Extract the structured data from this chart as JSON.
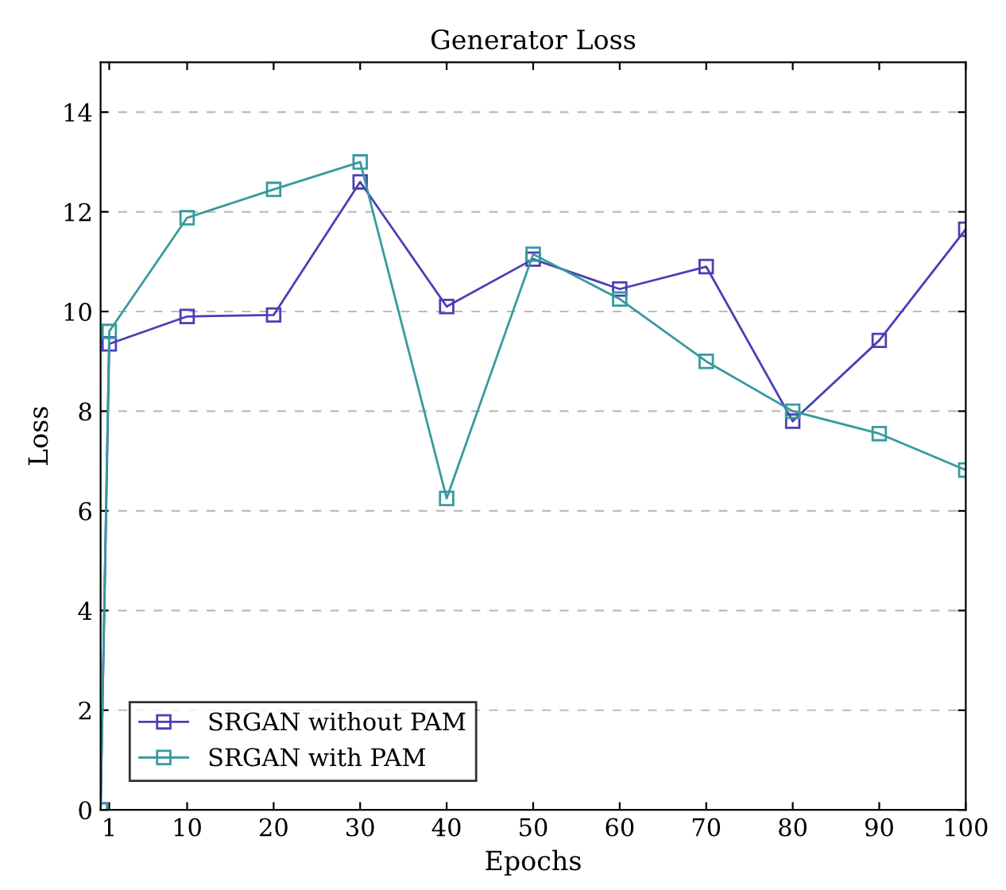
{
  "chart_data": {
    "type": "line",
    "title": "Generator Loss",
    "xlabel": "Epochs",
    "ylabel": "Loss",
    "x": [
      0,
      1,
      10,
      20,
      30,
      40,
      50,
      60,
      70,
      80,
      90,
      100
    ],
    "series": [
      {
        "name": "SRGAN without PAM",
        "color": "#4a3fb5",
        "values": [
          0,
          9.35,
          9.9,
          9.93,
          12.6,
          10.1,
          11.05,
          10.45,
          10.9,
          7.8,
          9.42,
          11.65
        ]
      },
      {
        "name": "SRGAN with PAM",
        "color": "#379a9e",
        "values": [
          0,
          9.6,
          11.88,
          12.45,
          13.0,
          6.25,
          11.15,
          10.25,
          9.0,
          8.0,
          7.55,
          6.82
        ]
      }
    ],
    "xlim": [
      0,
      100
    ],
    "xticks": [
      1,
      10,
      20,
      30,
      40,
      50,
      60,
      70,
      80,
      90,
      100
    ],
    "ylim": [
      0,
      15
    ],
    "yticks": [
      0,
      2,
      4,
      6,
      8,
      10,
      12,
      14
    ],
    "grid": "y",
    "legend": "bottom left",
    "marker": "square",
    "line_style": "solid"
  }
}
